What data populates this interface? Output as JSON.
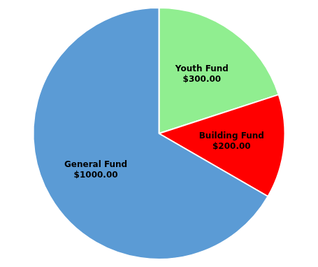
{
  "chart_data": {
    "type": "pie",
    "categories": [
      "Youth Fund",
      "Building Fund",
      "General Fund"
    ],
    "values": [
      300,
      200,
      1000
    ],
    "value_labels": [
      "$300.00",
      "$200.00",
      "$1000.00"
    ],
    "data_labels": true,
    "colors": [
      "#90EE90",
      "#FF0000",
      "#5B9BD5"
    ]
  }
}
